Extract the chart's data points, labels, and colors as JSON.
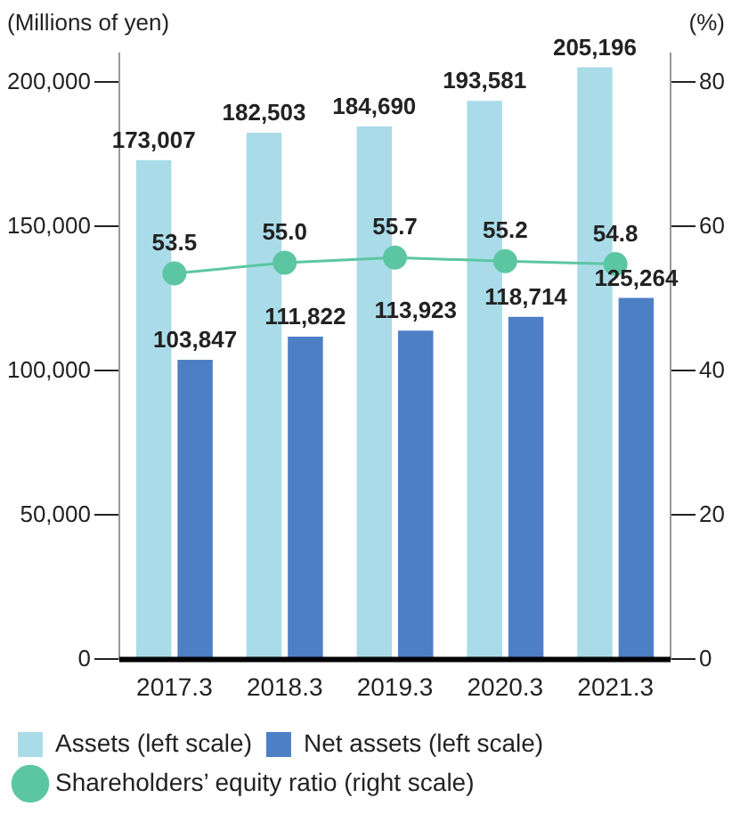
{
  "chart_data": {
    "type": "bar",
    "ylabel": "(Millions of yen)",
    "y2label": "(%)",
    "categories": [
      "2017.3",
      "2018.3",
      "2019.3",
      "2020.3",
      "2021.3"
    ],
    "series": [
      {
        "name": "Assets (left scale)",
        "color": "#a9dce8",
        "values": [
          173007,
          182503,
          184690,
          193581,
          205196
        ]
      },
      {
        "name": "Net assets (left scale)",
        "color": "#4d7fc5",
        "values": [
          103847,
          111822,
          113923,
          118714,
          125264
        ]
      },
      {
        "name": "Shareholders’ equity ratio (right scale)",
        "type": "line",
        "axis": "y2",
        "color": "#5cc6a2",
        "values": [
          53.5,
          55.0,
          55.7,
          55.2,
          54.8
        ]
      }
    ],
    "value_labels": [
      [
        "173,007",
        "182,503",
        "184,690",
        "193,581",
        "205,196"
      ],
      [
        "103,847",
        "111,822",
        "113,923",
        "118,714",
        "125,264"
      ],
      [
        "53.5",
        "55.0",
        "55.7",
        "55.2",
        "54.8"
      ]
    ],
    "ylim": [
      0,
      210000
    ],
    "yticks": [
      {
        "value": 0,
        "label": "0"
      },
      {
        "value": 50000,
        "label": "50,000"
      },
      {
        "value": 100000,
        "label": "100,000"
      },
      {
        "value": 150000,
        "label": "150,000"
      },
      {
        "value": 200000,
        "label": "200,000"
      }
    ],
    "y2lim": [
      0,
      84
    ],
    "y2ticks": [
      0,
      20,
      40,
      60,
      80
    ],
    "marker": "circle",
    "grid": false,
    "legend": "bottom"
  }
}
